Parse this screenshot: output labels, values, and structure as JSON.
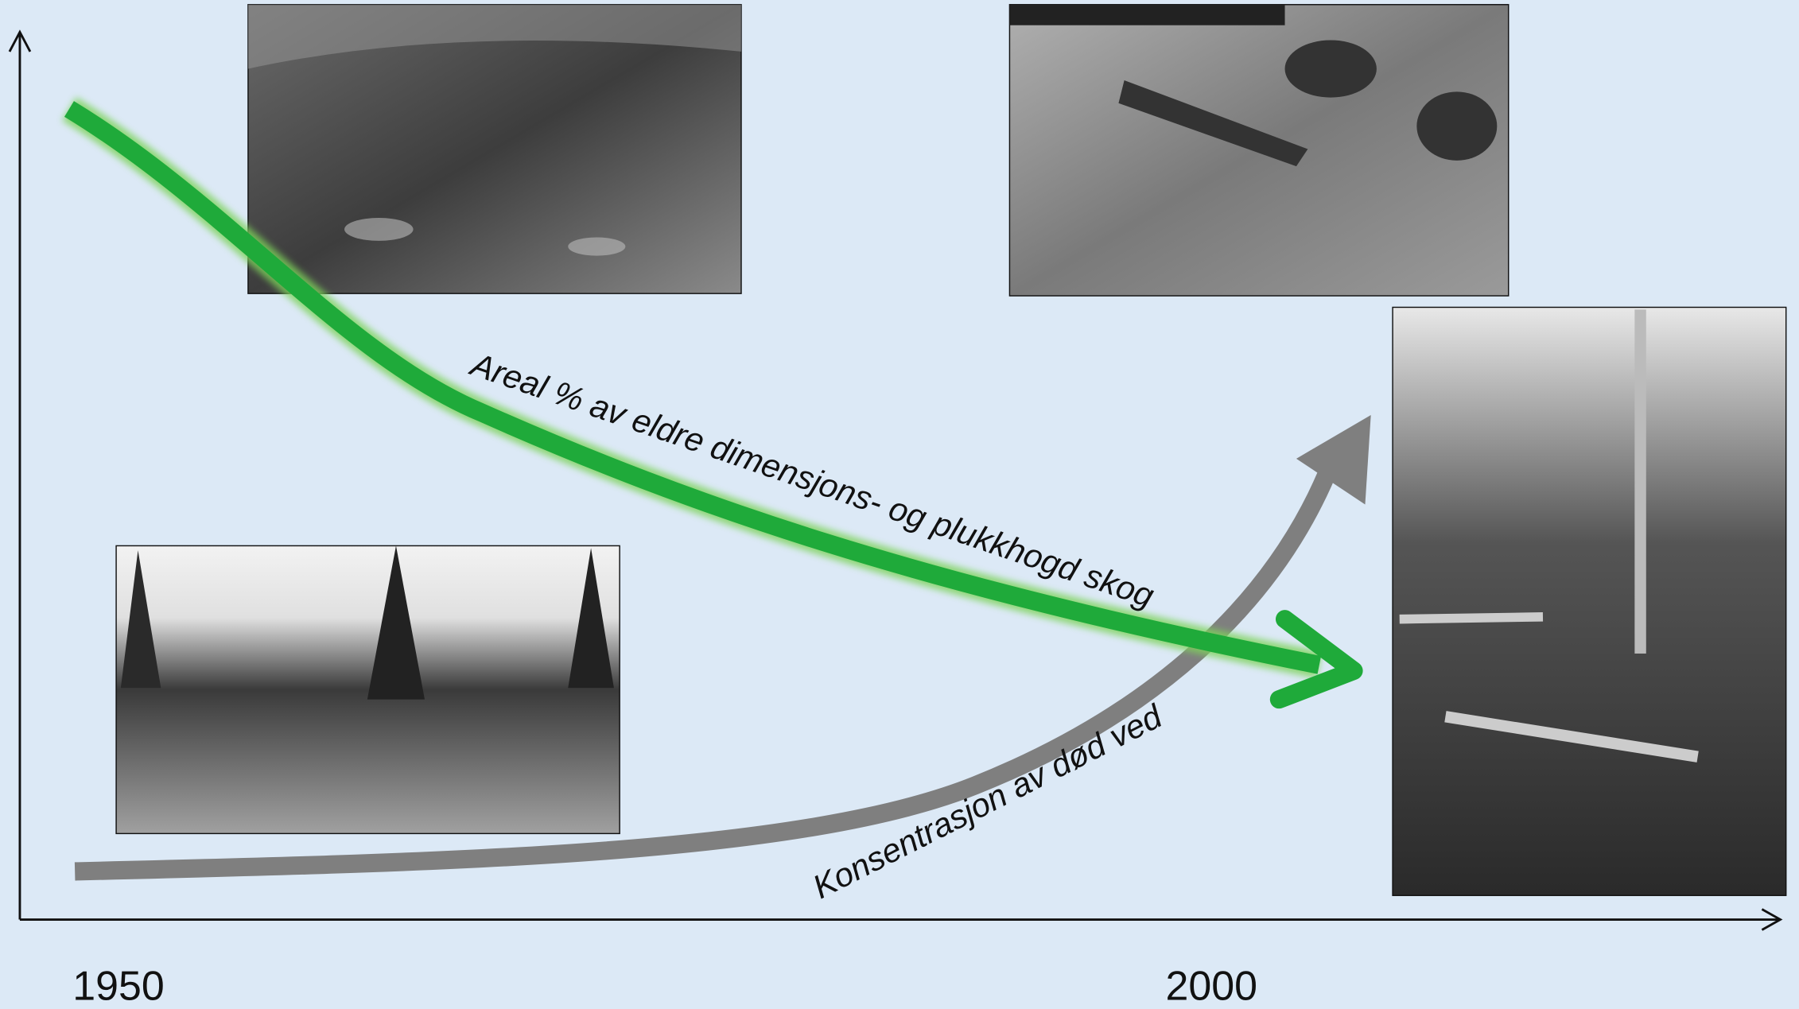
{
  "curves": [
    {
      "label": "Areal % av eldre dimensjons- og plukkhogd skog"
    },
    {
      "label": "Konsentrasjon av død ved"
    }
  ],
  "axis": {
    "start": "1950",
    "end": "2000"
  }
}
